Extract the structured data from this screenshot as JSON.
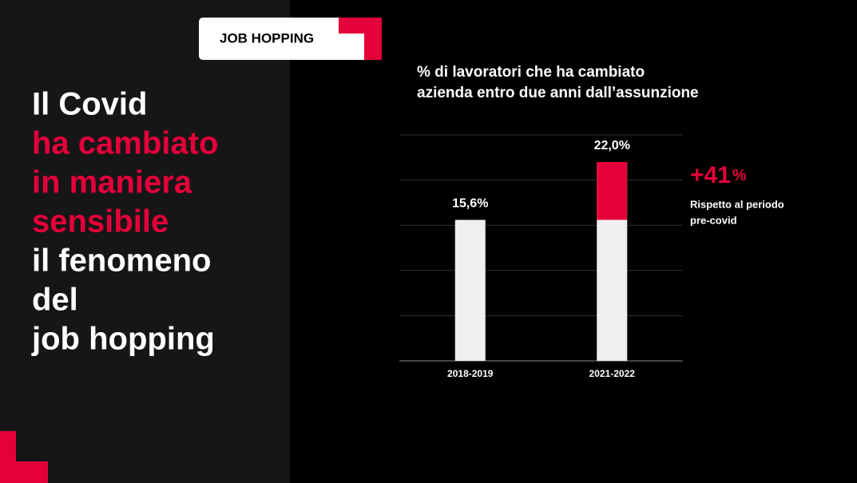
{
  "tag": "JOB HOPPING",
  "headline": {
    "lines": [
      {
        "text": "Il Covid",
        "highlight": false
      },
      {
        "text": "ha cambiato",
        "highlight": true
      },
      {
        "text": "in maniera",
        "highlight": true
      },
      {
        "text": "sensibile",
        "highlight": true
      },
      {
        "text": "il fenomeno",
        "highlight": false
      },
      {
        "text": "del",
        "highlight": false
      },
      {
        "text": "job hopping",
        "highlight": false
      }
    ],
    "color": "#ffffff",
    "highlight_color": "#e4003a"
  },
  "chart_data": {
    "type": "bar",
    "title": [
      "% di lavoratori che ha cambiato",
      "azienda entro due anni dall’assunzione"
    ],
    "categories": [
      "2018-2019",
      "2021-2022"
    ],
    "values": [
      15.6,
      22.0
    ],
    "value_labels": [
      "15,6%",
      "22,0%"
    ],
    "color": "#efefef",
    "highlight_color": "#e4003a",
    "ylim": [
      0,
      25
    ],
    "yticks": [
      0,
      5,
      10,
      15,
      20,
      25
    ],
    "grid": true,
    "annotation": {
      "value": "+41",
      "unit": "%",
      "text": [
        "Rispetto al periodo",
        "pre-covid"
      ]
    }
  }
}
